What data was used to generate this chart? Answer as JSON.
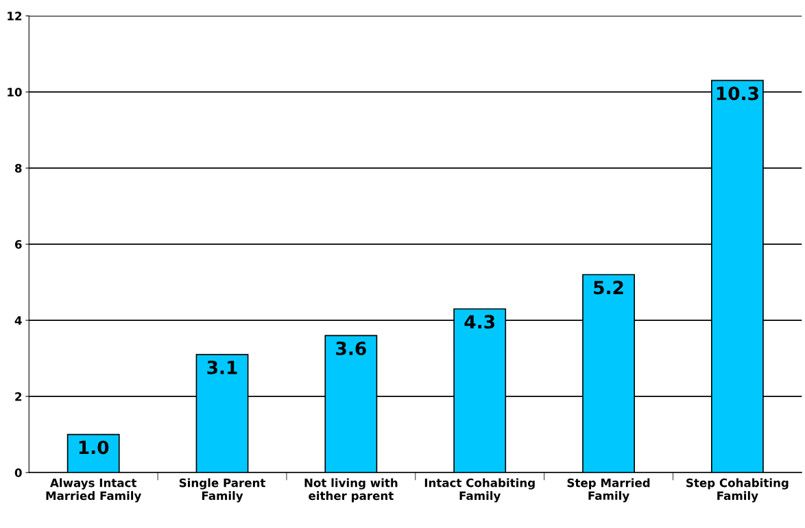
{
  "chart_data": {
    "type": "bar",
    "categories": [
      "Always Intact\nMarried Family",
      "Single Parent\nFamily",
      "Not living with\neither parent",
      "Intact Cohabiting\nFamily",
      "Step Married\nFamily",
      "Step Cohabiting\nFamily"
    ],
    "values": [
      1.0,
      3.1,
      3.6,
      4.3,
      5.2,
      10.3
    ],
    "color": "#00c8ff",
    "ylim": [
      0,
      12
    ],
    "yticks": [
      0,
      2,
      4,
      6,
      8,
      10,
      12
    ],
    "value_labels": [
      "1.0",
      "3.1",
      "3.6",
      "4.3",
      "5.2",
      "10.3"
    ],
    "grid": "y"
  }
}
